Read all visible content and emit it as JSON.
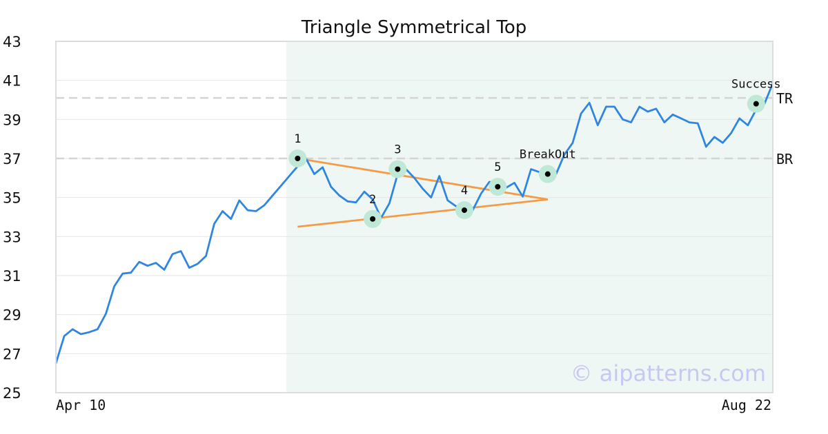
{
  "chart_data": {
    "type": "line",
    "title": "Triangle Symmetrical Top",
    "xlabel": "",
    "ylabel": "",
    "ylim": [
      25,
      43
    ],
    "yticks": [
      25,
      27,
      29,
      31,
      33,
      35,
      37,
      39,
      41,
      43
    ],
    "x_tick_labels": [
      "Apr 10",
      "Aug 22"
    ],
    "grid": true,
    "colors": {
      "price_line": "#2f86e0",
      "trend_lines": "#f59b45",
      "pattern_region": "#eef7f3",
      "marker_halo": "#bfe8d6",
      "marker_dot": "#000000",
      "level_lines": "#d4d4d4",
      "watermark": "#c8c8f4"
    },
    "series": [
      {
        "values": [
          26.5,
          27.9,
          28.25,
          28.0,
          28.1,
          28.25,
          29.05,
          30.45,
          31.1,
          31.15,
          31.7,
          31.5,
          31.65,
          31.3,
          32.1,
          32.25,
          31.4,
          31.6,
          32.0,
          33.65,
          34.3,
          33.9,
          34.85,
          34.35,
          34.3,
          34.6,
          35.1,
          35.6,
          36.1,
          36.6,
          37.0,
          36.2,
          36.55,
          35.55,
          35.1,
          34.8,
          34.75,
          35.3,
          34.9,
          33.95,
          34.7,
          36.2,
          36.45,
          36.0,
          35.45,
          35.0,
          36.1,
          34.85,
          34.55,
          34.4,
          34.35,
          35.2,
          35.8,
          35.75,
          35.5,
          35.75,
          35.05,
          36.45,
          36.3,
          35.95,
          36.2,
          37.2,
          37.8,
          39.3,
          39.85,
          38.7,
          39.65,
          39.65,
          39.0,
          38.85,
          39.65,
          39.4,
          39.55,
          38.85,
          39.25,
          39.05,
          38.85,
          38.8,
          37.6,
          38.1,
          37.8,
          38.3,
          39.05,
          38.7,
          39.5,
          39.8,
          40.85
        ]
      }
    ],
    "pattern_region_index": [
      27,
      86
    ],
    "trend_lines": [
      {
        "from": [
          29,
          37.0
        ],
        "to": [
          59,
          34.9
        ]
      },
      {
        "from": [
          29,
          33.5
        ],
        "to": [
          59,
          34.9
        ]
      }
    ],
    "levels": [
      {
        "label": "TR",
        "value": 40.1
      },
      {
        "label": "BR",
        "value": 37.0
      }
    ],
    "annotations": [
      {
        "label": "1",
        "index": 29,
        "value": 37.0
      },
      {
        "label": "2",
        "index": 38,
        "value": 33.9
      },
      {
        "label": "3",
        "index": 41,
        "value": 36.45
      },
      {
        "label": "4",
        "index": 49,
        "value": 34.35
      },
      {
        "label": "5",
        "index": 53,
        "value": 35.55
      },
      {
        "label": "BreakOut",
        "index": 59,
        "value": 36.2
      },
      {
        "label": "Success",
        "index": 84,
        "value": 39.8
      }
    ],
    "watermark": "© aipatterns.com"
  }
}
